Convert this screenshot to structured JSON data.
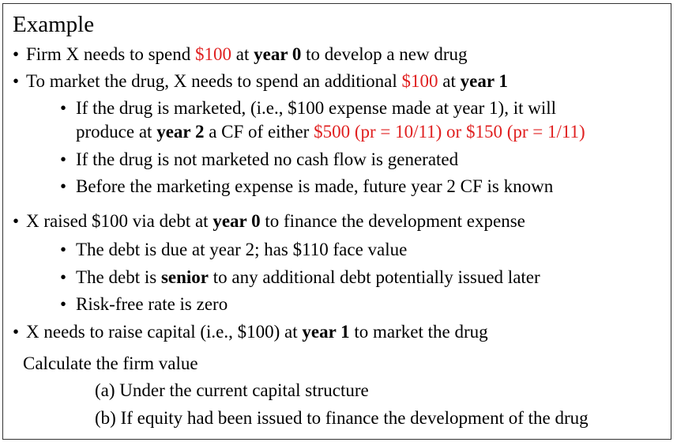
{
  "heading": "Example",
  "lines": {
    "l1": {
      "bullet": "•",
      "a": "Firm X needs to spend ",
      "b": "$100",
      "c": " at ",
      "d": "year 0",
      "e": " to develop a new drug"
    },
    "l2": {
      "bullet": "•",
      "a": "To market the drug, X needs to spend an additional ",
      "b": "$100",
      "c": " at ",
      "d": "year 1"
    },
    "l3": {
      "bullet": "•",
      "a": "If the drug is marketed, (i.e., $100 expense made at year 1), it will"
    },
    "l4": {
      "a": "produce at ",
      "b": "year 2",
      "c": " a CF of either ",
      "d": "$500 (pr = 10/11) or $150 (pr = 1/11)"
    },
    "l5": {
      "bullet": "•",
      "a": "If the drug is not marketed no cash flow is generated"
    },
    "l6": {
      "bullet": "•",
      "a": "Before the marketing expense is made, future year 2 CF is known"
    },
    "l7": {
      "bullet": "•",
      "a": "X raised $100 via debt at ",
      "b": "year 0",
      "c": " to finance the development expense"
    },
    "l8": {
      "bullet": "•",
      "a": "The debt is due at year 2; has $110 face value"
    },
    "l9": {
      "bullet": "•",
      "a": "The debt is ",
      "b": "senior",
      "c": " to any additional debt potentially issued later"
    },
    "l10": {
      "bullet": "•",
      "a": "Risk-free rate is zero"
    },
    "l11": {
      "bullet": "•",
      "a": "X needs to raise capital (i.e., $100) at ",
      "b": "year 1",
      "c": " to market the drug"
    },
    "l12": {
      "a": "Calculate the firm value"
    },
    "l13": {
      "a": "(a) Under the current capital structure"
    },
    "l14": {
      "a": "(b) If equity had been issued to finance the development of the drug"
    }
  },
  "colors": {
    "highlight": "#e02020",
    "text": "#000000",
    "border": "#333333"
  }
}
